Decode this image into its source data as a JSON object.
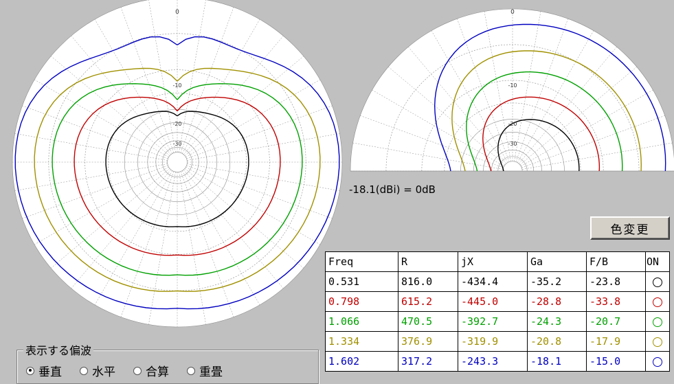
{
  "db_reference": "-18.1(dBi) = 0dB",
  "color_button": "色変更",
  "table": {
    "headers": [
      "Freq",
      "R",
      "jX",
      "Ga",
      "F/B",
      "ON"
    ],
    "rows": [
      {
        "freq": "0.531",
        "r": "816.0",
        "jx": "-434.4",
        "ga": "-35.2",
        "fb": "-23.8",
        "color": "#000000"
      },
      {
        "freq": "0.798",
        "r": "615.2",
        "jx": "-445.0",
        "ga": "-28.8",
        "fb": "-33.8",
        "color": "#c00000"
      },
      {
        "freq": "1.066",
        "r": "470.5",
        "jx": "-392.7",
        "ga": "-24.3",
        "fb": "-20.7",
        "color": "#00a000"
      },
      {
        "freq": "1.334",
        "r": "376.9",
        "jx": "-319.9",
        "ga": "-20.8",
        "fb": "-17.9",
        "color": "#a09000"
      },
      {
        "freq": "1.602",
        "r": "317.2",
        "jx": "-243.3",
        "ga": "-18.1",
        "fb": "-15.0",
        "color": "#0000c0"
      }
    ]
  },
  "polarization": {
    "legend": "表示する偏波",
    "options": [
      "垂直",
      "水平",
      "合算",
      "重畳"
    ],
    "selected": "垂直"
  },
  "plot_labels": {
    "top_mark": "0",
    "ring_10": "-10",
    "ring_20": "-20",
    "ring_30": "-30"
  },
  "plot_colors": {
    "grid": "#8c8c8c",
    "background": "#ffffff",
    "frame": "#c0c0c0"
  }
}
